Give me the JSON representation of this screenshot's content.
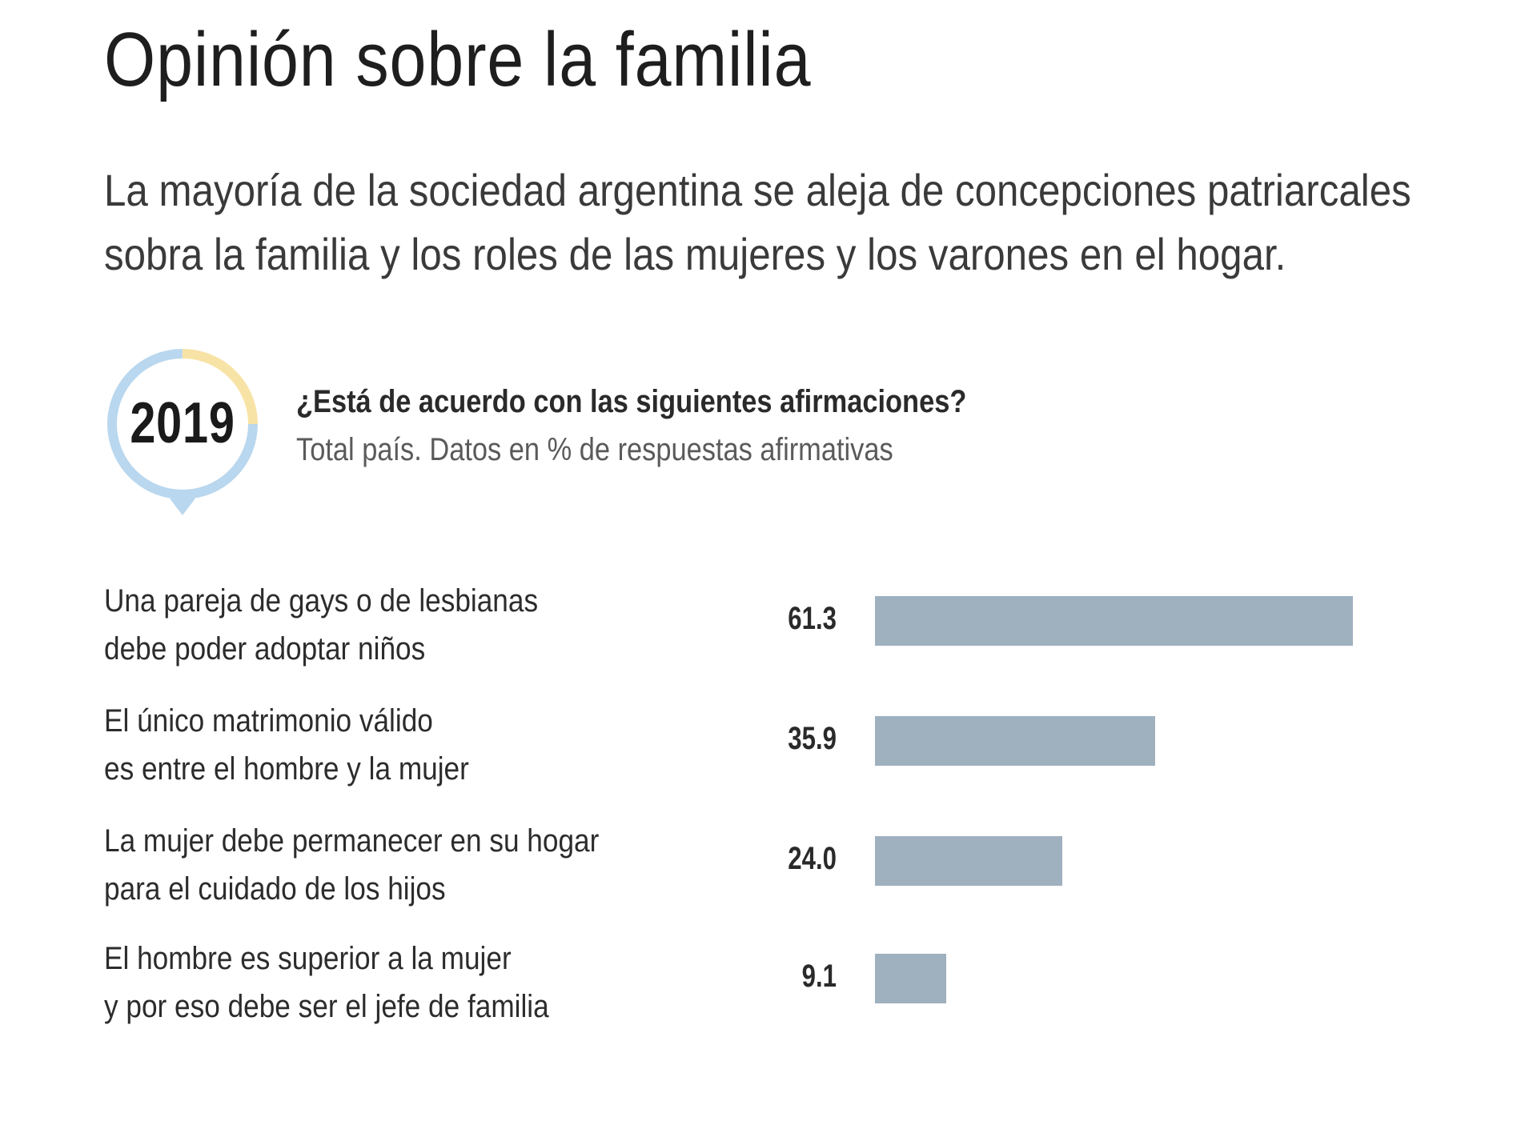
{
  "title": "Opinión sobre la familia",
  "subtitle_lines": [
    "La mayoría de la sociedad argentina se aleja de concepciones patriarcales",
    "sobra la familia y los roles de las mujeres y los varones en el hogar."
  ],
  "badge": {
    "year": "2019",
    "ring_colors": [
      "#b9d7ee",
      "#f8e3a6"
    ]
  },
  "question": "¿Está de acuerdo con las siguientes afirmaciones?",
  "note": "Total país. Datos en % de respuestas afirmativas",
  "colors": {
    "bar": "#9fb0be"
  },
  "chart_data": {
    "type": "bar",
    "orientation": "horizontal",
    "categories": [
      [
        "Una pareja de gays o de lesbianas",
        "debe  poder adoptar niños"
      ],
      [
        "El único matrimonio válido",
        "es entre el hombre y la mujer"
      ],
      [
        "La mujer debe permanecer en su hogar",
        "para el cuidado de los hijos"
      ],
      [
        "El hombre es superior a la mujer",
        "y por eso debe ser el jefe de familia"
      ]
    ],
    "values": [
      61.3,
      35.9,
      24.0,
      9.1
    ],
    "value_labels": [
      "61.3",
      "35.9",
      "24.0",
      "9.1"
    ]
  }
}
